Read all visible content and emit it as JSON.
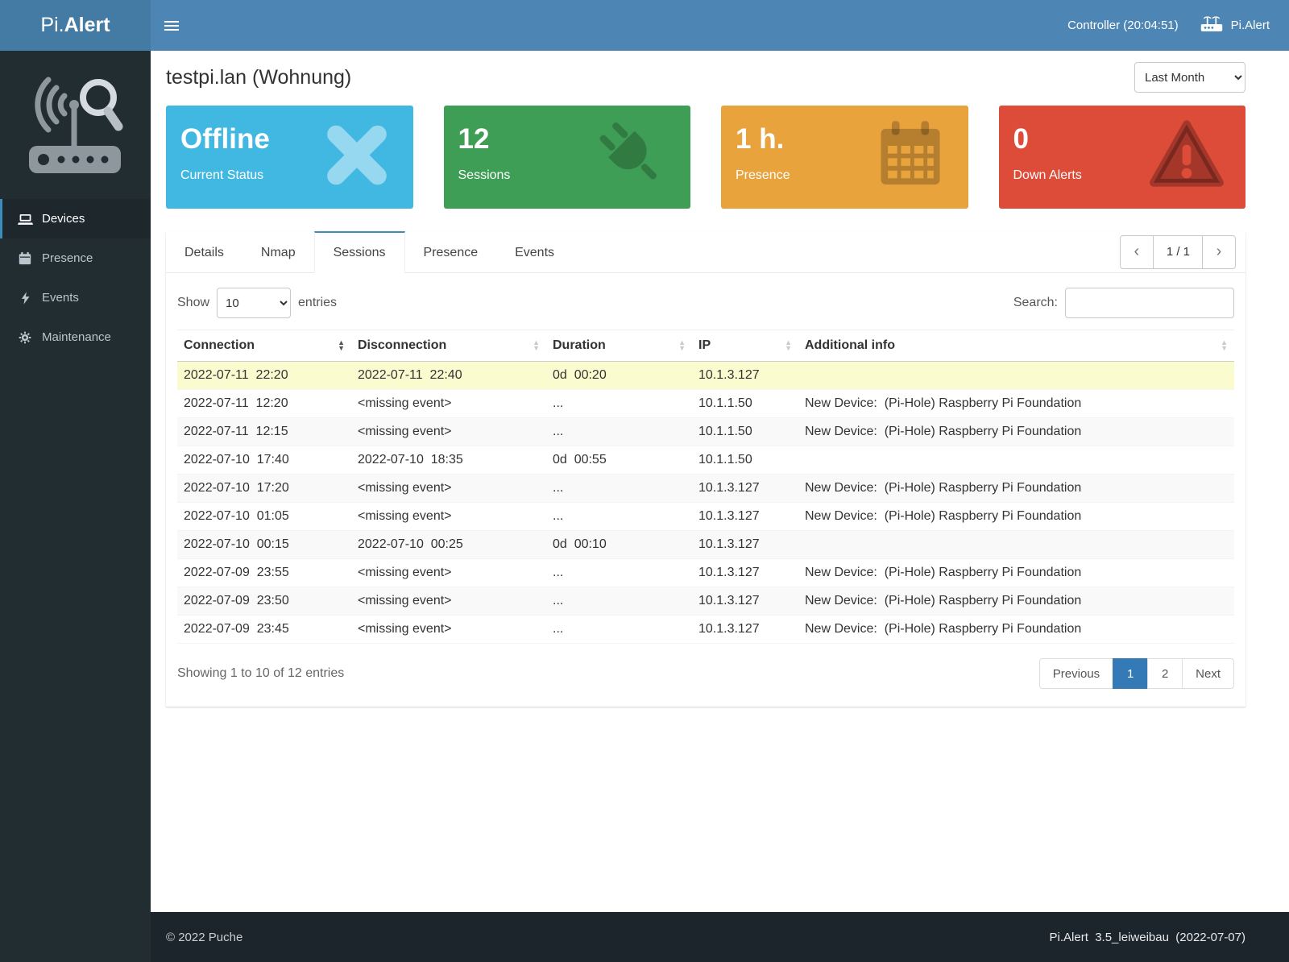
{
  "header": {
    "brand_prefix": "Pi.",
    "brand_suffix": "Alert",
    "controller": "Controller (20:04:51)",
    "device_link": "Pi.Alert"
  },
  "sidebar": {
    "items": [
      {
        "label": "Devices",
        "icon": "laptop-icon",
        "active": true
      },
      {
        "label": "Presence",
        "icon": "calendar-icon",
        "active": false
      },
      {
        "label": "Events",
        "icon": "bolt-icon",
        "active": false
      },
      {
        "label": "Maintenance",
        "icon": "gear-icon",
        "active": false
      }
    ]
  },
  "main": {
    "title": "testpi.lan (Wohnung)",
    "period_selected": "Last Month",
    "cards": [
      {
        "value": "Offline",
        "label": "Current Status",
        "icon": "x-icon",
        "color": "#41b8e2"
      },
      {
        "value": "12",
        "label": "Sessions",
        "icon": "plug-icon",
        "color": "#3f9e56"
      },
      {
        "value": "1 h.",
        "label": "Presence",
        "icon": "calendar-icon",
        "color": "#e8a33d"
      },
      {
        "value": "0",
        "label": "Down Alerts",
        "icon": "warning-icon",
        "color": "#dd4b39"
      }
    ],
    "tabs": [
      {
        "label": "Details",
        "active": false
      },
      {
        "label": "Nmap",
        "active": false
      },
      {
        "label": "Sessions",
        "active": true
      },
      {
        "label": "Presence",
        "active": false
      },
      {
        "label": "Events",
        "active": false
      }
    ],
    "pager": {
      "indicator": "1 / 1"
    },
    "controls": {
      "show_label": "Show",
      "page_size": "10",
      "entries_label": "entries",
      "search_label": "Search:",
      "search_value": ""
    },
    "table": {
      "headers": [
        "Connection",
        "Disconnection",
        "Duration",
        "IP",
        "Additional info"
      ],
      "sorted_column": 0,
      "rows": [
        {
          "highlight": true,
          "cells": [
            "2022-07-11  22:20",
            "2022-07-11  22:40",
            "0d  00:20",
            "10.1.3.127",
            ""
          ]
        },
        {
          "highlight": false,
          "cells": [
            "2022-07-11  12:20",
            "<missing event>",
            "...",
            "10.1.1.50",
            "New Device:  (Pi-Hole) Raspberry Pi Foundation"
          ]
        },
        {
          "highlight": false,
          "cells": [
            "2022-07-11  12:15",
            "<missing event>",
            "...",
            "10.1.1.50",
            "New Device:  (Pi-Hole) Raspberry Pi Foundation"
          ]
        },
        {
          "highlight": false,
          "cells": [
            "2022-07-10  17:40",
            "2022-07-10  18:35",
            "0d  00:55",
            "10.1.1.50",
            ""
          ]
        },
        {
          "highlight": false,
          "cells": [
            "2022-07-10  17:20",
            "<missing event>",
            "...",
            "10.1.3.127",
            "New Device:  (Pi-Hole) Raspberry Pi Foundation"
          ]
        },
        {
          "highlight": false,
          "cells": [
            "2022-07-10  01:05",
            "<missing event>",
            "...",
            "10.1.3.127",
            "New Device:  (Pi-Hole) Raspberry Pi Foundation"
          ]
        },
        {
          "highlight": false,
          "cells": [
            "2022-07-10  00:15",
            "2022-07-10  00:25",
            "0d  00:10",
            "10.1.3.127",
            ""
          ]
        },
        {
          "highlight": false,
          "cells": [
            "2022-07-09  23:55",
            "<missing event>",
            "...",
            "10.1.3.127",
            "New Device:  (Pi-Hole) Raspberry Pi Foundation"
          ]
        },
        {
          "highlight": false,
          "cells": [
            "2022-07-09  23:50",
            "<missing event>",
            "...",
            "10.1.3.127",
            "New Device:  (Pi-Hole) Raspberry Pi Foundation"
          ]
        },
        {
          "highlight": false,
          "cells": [
            "2022-07-09  23:45",
            "<missing event>",
            "...",
            "10.1.3.127",
            "New Device:  (Pi-Hole) Raspberry Pi Foundation"
          ]
        }
      ],
      "summary": "Showing 1 to 10 of 12 entries"
    },
    "pagination": {
      "previous": "Previous",
      "pages": [
        "1",
        "2"
      ],
      "active_page": "1",
      "next": "Next"
    }
  },
  "footer": {
    "copyright": "© 2022 Puche",
    "version": "Pi.Alert  3.5_leiweibau  (2022-07-07)"
  },
  "colors": {
    "navbar": "#4d86b4",
    "navbar_logo": "#447ba4",
    "sidebar": "#222d32",
    "accent": "#3c8dbc",
    "active_page": "#337ab7",
    "highlight_row": "#fbfbd0",
    "card_blue": "#41b8e2",
    "card_green": "#3f9e56",
    "card_orange": "#e8a33d",
    "card_red": "#dd4b39"
  }
}
